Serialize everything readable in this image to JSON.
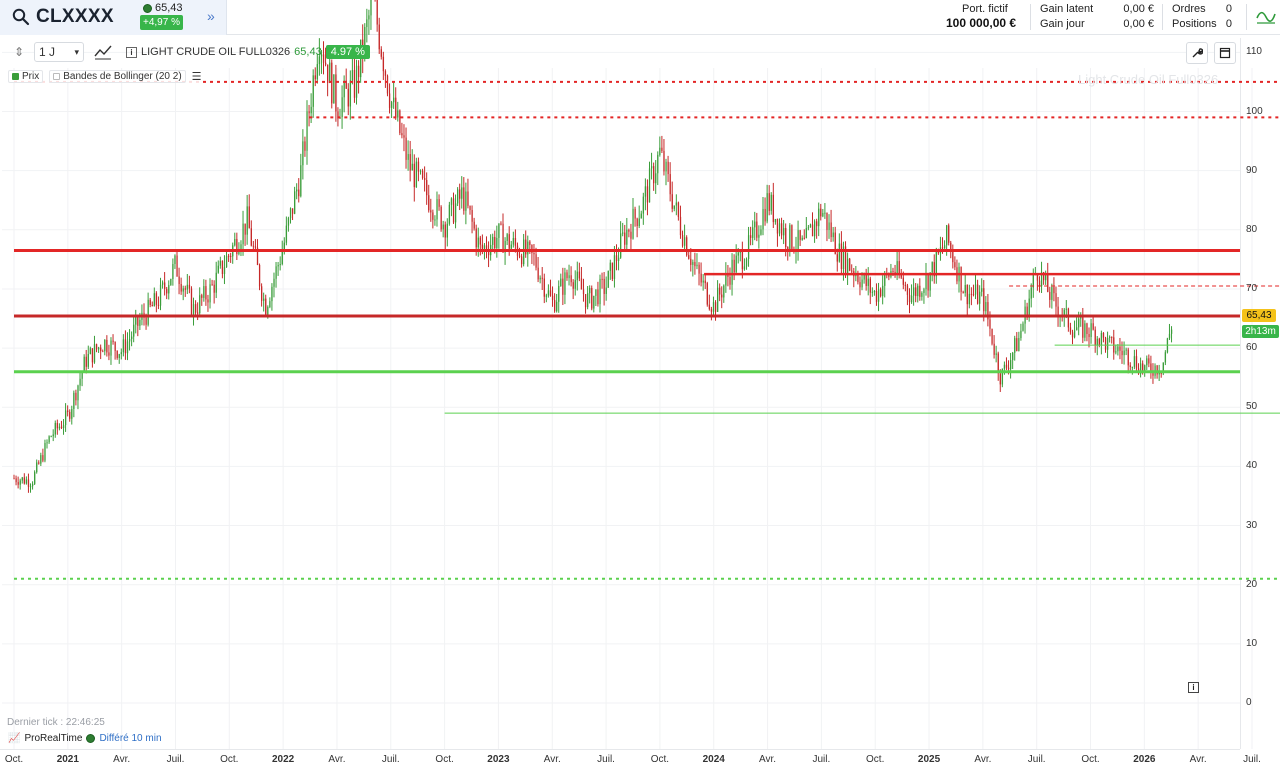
{
  "header": {
    "symbol": "CLXXXX",
    "price": "65,43",
    "change": "+4,97 %",
    "portfolio_label": "Port. fictif",
    "portfolio_value": "100 000,00 €",
    "gain_latent_label": "Gain latent",
    "gain_latent_value": "0,00 €",
    "gain_jour_label": "Gain jour",
    "gain_jour_value": "0,00 €",
    "ordres_label": "Ordres",
    "ordres_value": "0",
    "positions_label": "Positions",
    "positions_value": "0"
  },
  "toolbar": {
    "period": "1 J",
    "instrument": "LIGHT CRUDE OIL FULL0326",
    "price": "65,43",
    "change": "4.97 %"
  },
  "legend": {
    "price": "Prix",
    "bollinger": "Bandes de Bollinger (20 2)"
  },
  "watermark": "Light Crude Oil Full0326",
  "footer": {
    "last_tick": "Dernier tick : 22:46:25",
    "provider": "ProRealTime",
    "delay": "Différé 10 min"
  },
  "timer": "2h13m",
  "colors": {
    "up": "#3a9d3a",
    "down": "#c62828",
    "resistance": "#e32626",
    "support": "#5bd14f",
    "accent": "#38b54a"
  },
  "icons": [
    "search-icon",
    "expand-icon",
    "chart-type-icon",
    "wrench-icon",
    "window-icon",
    "wave-icon",
    "info-icon"
  ],
  "chart_data": {
    "type": "candlestick",
    "title": "LIGHT CRUDE OIL FULL0326",
    "y_ticks": [
      0,
      10,
      20,
      30,
      40,
      50,
      60,
      70,
      80,
      90,
      100,
      110
    ],
    "ylim": [
      -2,
      113
    ],
    "x_ticks": [
      "Oct.",
      "2021",
      "Avr.",
      "Juil.",
      "Oct.",
      "2022",
      "Avr.",
      "Juil.",
      "Oct.",
      "2023",
      "Avr.",
      "Juil.",
      "Oct.",
      "2024",
      "Avr.",
      "Juil.",
      "Oct.",
      "2025",
      "Avr.",
      "Juil.",
      "Oct.",
      "2026",
      "Avr.",
      "Juil."
    ],
    "x_tick_dates": [
      "2020-10",
      "2021-01",
      "2021-04",
      "2021-07",
      "2021-10",
      "2022-01",
      "2022-04",
      "2022-07",
      "2022-10",
      "2023-01",
      "2023-04",
      "2023-07",
      "2023-10",
      "2024-01",
      "2024-04",
      "2024-07",
      "2024-10",
      "2025-01",
      "2025-04",
      "2025-07",
      "2025-10",
      "2026-01",
      "2026-04",
      "2026-07"
    ],
    "bold_ticks": [
      "2021",
      "2022",
      "2023",
      "2024",
      "2025",
      "2026"
    ],
    "last_price": 65.43,
    "price_path": [
      [
        "2020-10-01",
        38.0
      ],
      [
        "2020-11-01",
        37.5
      ],
      [
        "2020-12-01",
        45.0
      ],
      [
        "2021-01-01",
        48.5
      ],
      [
        "2021-02-01",
        58.0
      ],
      [
        "2021-03-01",
        61.0
      ],
      [
        "2021-04-01",
        59.5
      ],
      [
        "2021-05-01",
        64.5
      ],
      [
        "2021-06-01",
        68.0
      ],
      [
        "2021-07-01",
        74.0
      ],
      [
        "2021-08-01",
        66.5
      ],
      [
        "2021-09-01",
        70.0
      ],
      [
        "2021-10-01",
        76.0
      ],
      [
        "2021-11-01",
        81.5
      ],
      [
        "2021-12-01",
        67.0
      ],
      [
        "2022-01-01",
        77.0
      ],
      [
        "2022-02-01",
        90.0
      ],
      [
        "2022-03-01",
        113.0
      ],
      [
        "2022-04-01",
        101.0
      ],
      [
        "2022-05-01",
        104.5
      ],
      [
        "2022-06-01",
        119.0
      ],
      [
        "2022-07-01",
        102.0
      ],
      [
        "2022-08-01",
        91.0
      ],
      [
        "2022-09-01",
        86.0
      ],
      [
        "2022-10-01",
        81.0
      ],
      [
        "2022-11-01",
        86.0
      ],
      [
        "2022-12-01",
        76.5
      ],
      [
        "2023-01-01",
        79.0
      ],
      [
        "2023-02-01",
        77.0
      ],
      [
        "2023-03-01",
        75.0
      ],
      [
        "2023-04-01",
        67.5
      ],
      [
        "2023-05-01",
        73.0
      ],
      [
        "2023-06-01",
        68.0
      ],
      [
        "2023-07-01",
        70.5
      ],
      [
        "2023-08-01",
        79.0
      ],
      [
        "2023-09-01",
        84.0
      ],
      [
        "2023-10-01",
        93.0
      ],
      [
        "2023-11-01",
        82.0
      ],
      [
        "2023-12-01",
        73.0
      ],
      [
        "2024-01-01",
        67.0
      ],
      [
        "2024-02-01",
        73.5
      ],
      [
        "2024-03-01",
        77.0
      ],
      [
        "2024-04-01",
        85.0
      ],
      [
        "2024-05-01",
        79.0
      ],
      [
        "2024-06-01",
        77.0
      ],
      [
        "2024-07-01",
        83.5
      ],
      [
        "2024-08-01",
        76.0
      ],
      [
        "2024-09-01",
        72.5
      ],
      [
        "2024-10-01",
        69.0
      ],
      [
        "2024-11-01",
        73.5
      ],
      [
        "2024-12-01",
        69.0
      ],
      [
        "2025-01-01",
        72.0
      ],
      [
        "2025-02-01",
        78.5
      ],
      [
        "2025-03-01",
        69.5
      ],
      [
        "2025-04-01",
        68.5
      ],
      [
        "2025-05-01",
        55.0
      ],
      [
        "2025-06-01",
        61.5
      ],
      [
        "2025-07-01",
        73.5
      ],
      [
        "2025-08-01",
        67.5
      ],
      [
        "2025-09-01",
        63.5
      ],
      [
        "2025-10-01",
        63.0
      ],
      [
        "2025-11-01",
        60.5
      ],
      [
        "2025-12-01",
        59.0
      ],
      [
        "2026-01-01",
        56.5
      ],
      [
        "2026-02-01",
        57.0
      ],
      [
        "2026-02-20",
        65.43
      ]
    ],
    "horizontal_lines": [
      {
        "price": 105.0,
        "style": "dotted",
        "color": "#e32626",
        "start": "2020-10-01"
      },
      {
        "price": 99.0,
        "style": "dotted",
        "color": "#e32626",
        "start": "2022-02-15"
      },
      {
        "price": 76.5,
        "style": "solid",
        "color": "#e32626",
        "start": "2020-10-01"
      },
      {
        "price": 72.5,
        "style": "solid",
        "color": "#e32626",
        "start": "2023-12-15"
      },
      {
        "price": 70.5,
        "style": "dashed",
        "color": "#e32626",
        "start": "2025-05-15"
      },
      {
        "price": 65.43,
        "style": "solid",
        "color": "#c62828",
        "start": "2020-10-01"
      },
      {
        "price": 60.5,
        "style": "solid",
        "color": "#5bd14f",
        "start": "2025-08-01"
      },
      {
        "price": 56.0,
        "style": "solid",
        "color": "#5bd14f",
        "start": "2020-10-01"
      },
      {
        "price": 49.0,
        "style": "solid",
        "color": "#5bd14f",
        "start": "2022-10-01"
      },
      {
        "price": 21.0,
        "style": "dotted",
        "color": "#5bd14f",
        "start": "2020-10-01"
      }
    ]
  }
}
